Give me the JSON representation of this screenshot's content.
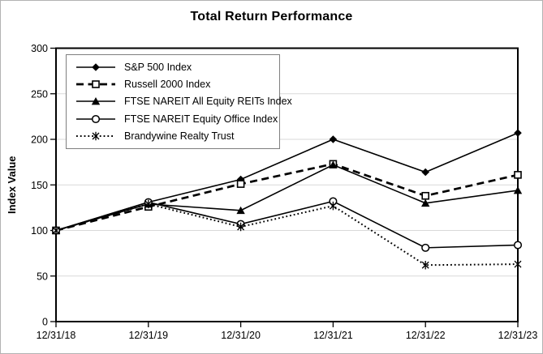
{
  "title": "Total Return Performance",
  "chart_data": {
    "type": "line",
    "title": "Total Return Performance",
    "xlabel": "",
    "ylabel": "Index Value",
    "categories": [
      "12/31/18",
      "12/31/19",
      "12/31/20",
      "12/31/21",
      "12/31/22",
      "12/31/23"
    ],
    "ylim": [
      0,
      300
    ],
    "yticks": [
      0,
      50,
      100,
      150,
      200,
      250,
      300
    ],
    "grid": "horizontal-only",
    "legend_position": "top-left-inside",
    "series": [
      {
        "name": "S&P 500 Index",
        "marker": "filled-diamond",
        "line": "solid",
        "values": [
          100,
          131,
          156,
          200,
          164,
          207
        ]
      },
      {
        "name": "Russell 2000 Index",
        "marker": "open-square",
        "line": "dashed",
        "values": [
          100,
          126,
          151,
          173,
          138,
          161
        ]
      },
      {
        "name": "FTSE NAREIT All Equity REITs Index",
        "marker": "filled-triangle",
        "line": "solid",
        "values": [
          100,
          129,
          122,
          172,
          130,
          144
        ]
      },
      {
        "name": "FTSE NAREIT Equity Office Index",
        "marker": "open-circle",
        "line": "solid",
        "values": [
          100,
          131,
          107,
          132,
          81,
          84
        ]
      },
      {
        "name": "Brandywine Realty Trust",
        "marker": "star",
        "line": "dotted",
        "values": [
          100,
          129,
          104,
          127,
          62,
          63
        ]
      }
    ],
    "colors": {
      "series": "#000000",
      "gridline": "#d9d9d9",
      "plot_border": "#000000",
      "background": "#ffffff",
      "outer_border": "#b3b3b3"
    }
  }
}
